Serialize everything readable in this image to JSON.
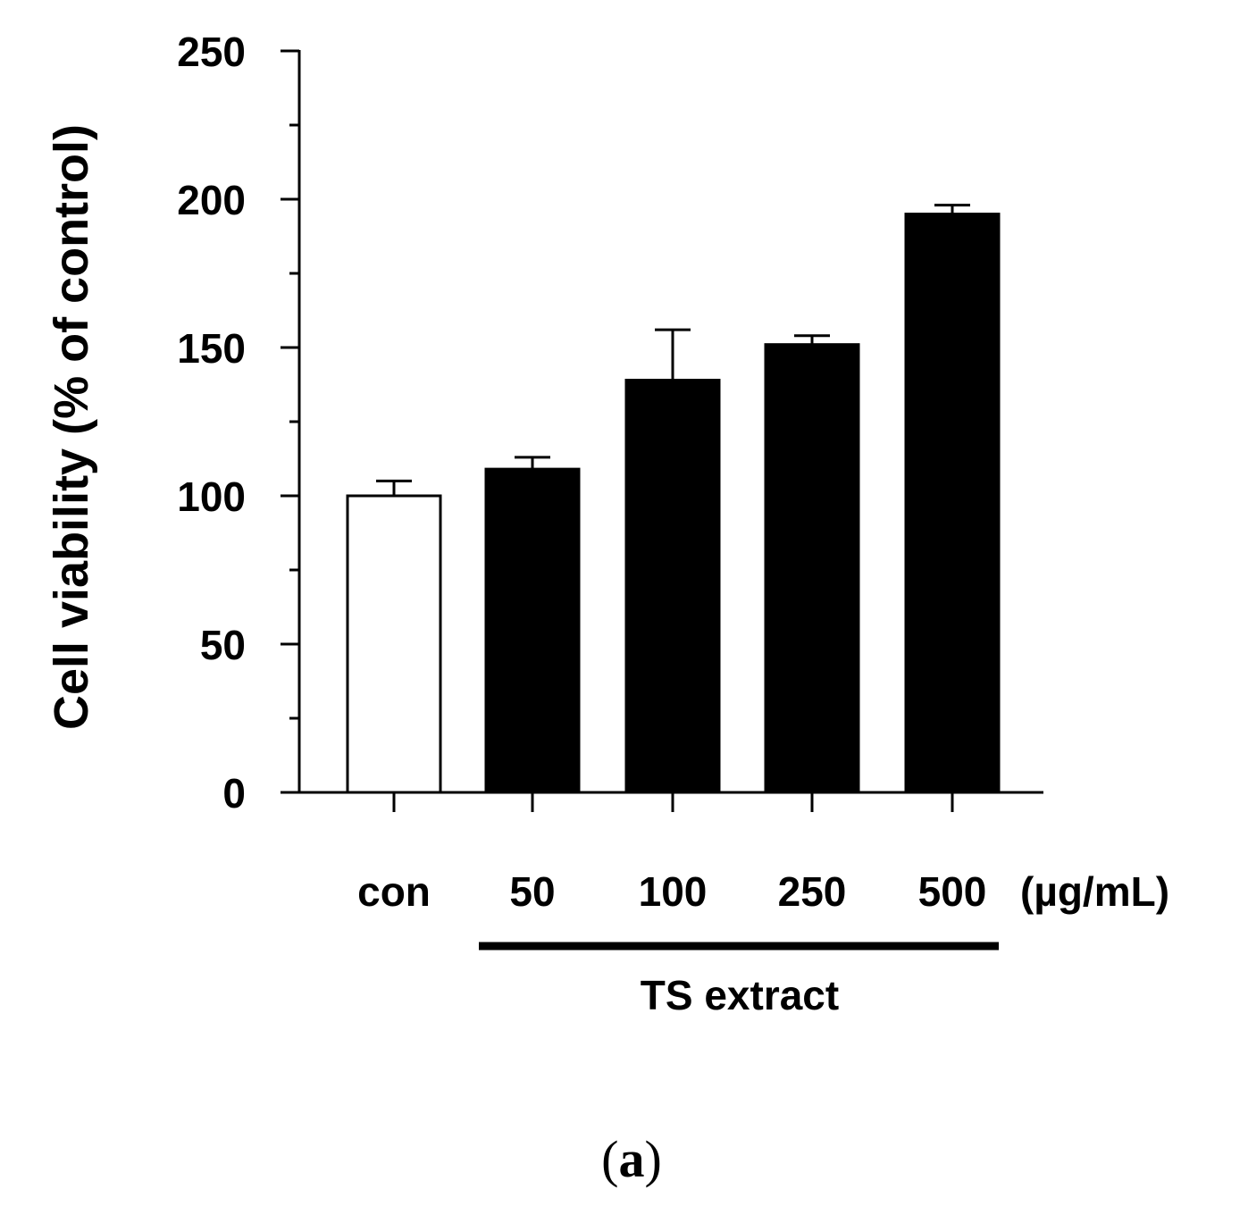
{
  "chart_data": {
    "type": "bar",
    "title": "",
    "ylabel": "Cell viability (% of control)",
    "xlabel": "",
    "ylim": [
      0,
      250
    ],
    "yticks": [
      0,
      50,
      100,
      150,
      200,
      250
    ],
    "categories": [
      "con",
      "50",
      "100",
      "250",
      "500"
    ],
    "unit_label": "(µg/mL)",
    "group_label": "TS extract",
    "grouped_categories": [
      "50",
      "100",
      "250",
      "500"
    ],
    "series": [
      {
        "name": "Cell viability",
        "values": [
          100,
          109,
          139,
          151,
          195
        ],
        "errors": [
          5,
          4,
          17,
          3,
          3
        ],
        "fills": [
          "#ffffff",
          "#000000",
          "#000000",
          "#000000",
          "#000000"
        ]
      }
    ],
    "grid": false,
    "legend": "none"
  },
  "caption": {
    "open": "(",
    "letter": "a",
    "close": ")"
  }
}
